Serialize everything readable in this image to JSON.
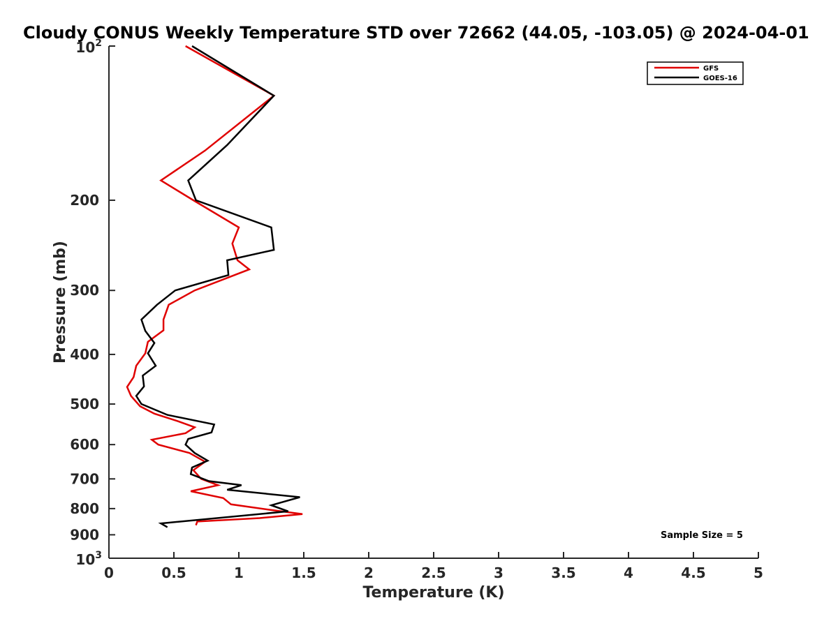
{
  "chart_data": {
    "type": "line",
    "title": "Cloudy CONUS Weekly Temperature STD over 72662 (44.05, -103.05) @ 2024-04-01",
    "xlabel": "Temperature (K)",
    "ylabel": "Pressure (mb)",
    "xlim": [
      0,
      5
    ],
    "ylim": [
      100,
      1000
    ],
    "y_scale": "log",
    "y_reversed": true,
    "x_ticks": [
      "0",
      "0.5",
      "1",
      "1.5",
      "2",
      "2.5",
      "3",
      "3.5",
      "4",
      "4.5",
      "5"
    ],
    "y_ticks": [
      {
        "value": 100,
        "base": "10",
        "exp": "2"
      },
      {
        "value": 200,
        "label": "200"
      },
      {
        "value": 300,
        "label": "300"
      },
      {
        "value": 400,
        "label": "400"
      },
      {
        "value": 500,
        "label": "500"
      },
      {
        "value": 600,
        "label": "600"
      },
      {
        "value": 700,
        "label": "700"
      },
      {
        "value": 800,
        "label": "800"
      },
      {
        "value": 900,
        "label": "900"
      },
      {
        "value": 1000,
        "base": "10",
        "exp": "3"
      }
    ],
    "grid": false,
    "legend_position": "top-right",
    "series": [
      {
        "name": "GFS",
        "color": "#e00000",
        "points": [
          [
            0.59,
            100
          ],
          [
            1.27,
            125
          ],
          [
            0.74,
            160
          ],
          [
            0.4,
            183
          ],
          [
            0.65,
            200
          ],
          [
            1.0,
            226
          ],
          [
            0.95,
            243
          ],
          [
            0.99,
            262
          ],
          [
            1.08,
            273
          ],
          [
            0.66,
            300
          ],
          [
            0.46,
            320
          ],
          [
            0.42,
            342
          ],
          [
            0.42,
            359
          ],
          [
            0.3,
            378
          ],
          [
            0.28,
            398
          ],
          [
            0.21,
            421
          ],
          [
            0.19,
            443
          ],
          [
            0.14,
            463
          ],
          [
            0.17,
            482
          ],
          [
            0.24,
            505
          ],
          [
            0.35,
            522
          ],
          [
            0.53,
            540
          ],
          [
            0.66,
            555
          ],
          [
            0.59,
            570
          ],
          [
            0.33,
            587
          ],
          [
            0.38,
            600
          ],
          [
            0.62,
            623
          ],
          [
            0.74,
            648
          ],
          [
            0.65,
            673
          ],
          [
            0.71,
            700
          ],
          [
            0.84,
            720
          ],
          [
            0.63,
            740
          ],
          [
            0.88,
            763
          ],
          [
            0.94,
            785
          ],
          [
            1.25,
            805
          ],
          [
            1.49,
            820
          ],
          [
            1.16,
            835
          ],
          [
            0.68,
            848
          ],
          [
            0.67,
            862
          ]
        ]
      },
      {
        "name": "GOES-16",
        "color": "#000000",
        "points": [
          [
            0.64,
            100
          ],
          [
            1.27,
            125
          ],
          [
            0.91,
            156
          ],
          [
            0.61,
            183
          ],
          [
            0.67,
            200
          ],
          [
            1.25,
            226
          ],
          [
            1.27,
            250
          ],
          [
            0.91,
            262
          ],
          [
            0.92,
            280
          ],
          [
            0.51,
            300
          ],
          [
            0.37,
            320
          ],
          [
            0.25,
            342
          ],
          [
            0.28,
            360
          ],
          [
            0.35,
            380
          ],
          [
            0.3,
            398
          ],
          [
            0.36,
            421
          ],
          [
            0.26,
            440
          ],
          [
            0.27,
            462
          ],
          [
            0.21,
            482
          ],
          [
            0.25,
            500
          ],
          [
            0.45,
            525
          ],
          [
            0.81,
            548
          ],
          [
            0.79,
            568
          ],
          [
            0.61,
            585
          ],
          [
            0.59,
            600
          ],
          [
            0.66,
            623
          ],
          [
            0.76,
            645
          ],
          [
            0.64,
            665
          ],
          [
            0.63,
            685
          ],
          [
            0.77,
            707
          ],
          [
            1.02,
            720
          ],
          [
            0.91,
            735
          ],
          [
            1.47,
            760
          ],
          [
            1.25,
            788
          ],
          [
            1.38,
            810
          ],
          [
            0.4,
            855
          ],
          [
            0.45,
            870
          ]
        ]
      }
    ],
    "annotation": "Sample Size = 5"
  }
}
